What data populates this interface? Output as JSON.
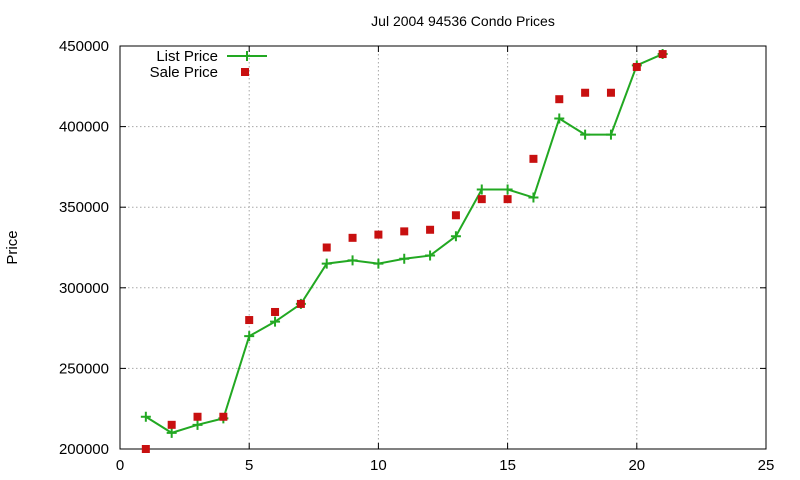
{
  "chart_data": {
    "type": "line",
    "title": "Jul 2004 94536 Condo Prices",
    "xlabel": "",
    "ylabel": "Price",
    "xlim": [
      0,
      25
    ],
    "ylim": [
      200000,
      450000
    ],
    "xticks": [
      0,
      5,
      10,
      15,
      20,
      25
    ],
    "yticks": [
      200000,
      250000,
      300000,
      350000,
      400000,
      450000
    ],
    "grid": true,
    "legend_position": "top-left",
    "series": [
      {
        "name": "List Price",
        "style": "line+cross",
        "color": "#22a822",
        "x": [
          1,
          2,
          3,
          4,
          5,
          6,
          7,
          8,
          9,
          10,
          11,
          12,
          13,
          14,
          15,
          16,
          17,
          18,
          19,
          20,
          21
        ],
        "y": [
          220000,
          210000,
          215000,
          219000,
          270000,
          279000,
          290000,
          315000,
          317000,
          315000,
          318000,
          320000,
          332000,
          361000,
          361000,
          356000,
          405000,
          395000,
          395000,
          438000,
          445000
        ]
      },
      {
        "name": "Sale Price",
        "style": "square",
        "color": "#c81010",
        "x": [
          1,
          2,
          3,
          4,
          5,
          6,
          7,
          8,
          9,
          10,
          11,
          12,
          13,
          14,
          15,
          16,
          17,
          18,
          19,
          20,
          21
        ],
        "y": [
          200000,
          215000,
          220000,
          220000,
          280000,
          285000,
          290000,
          325000,
          331000,
          333000,
          335000,
          336000,
          345000,
          355000,
          355000,
          380000,
          417000,
          421000,
          421000,
          437000,
          445000
        ]
      }
    ]
  }
}
